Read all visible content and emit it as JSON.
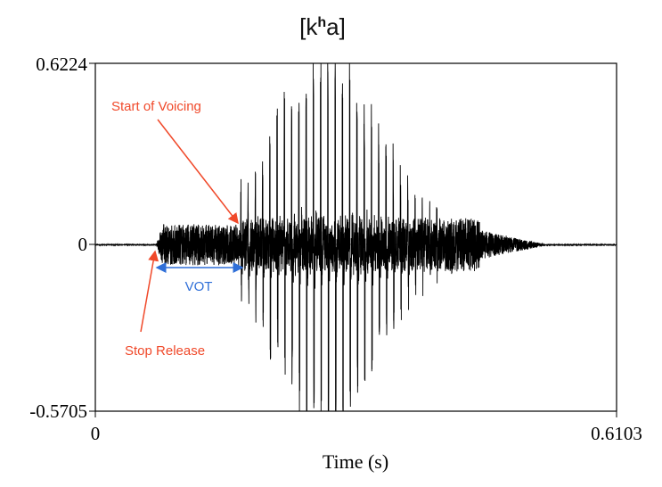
{
  "chart_data": {
    "type": "line",
    "title": "[kʰa]",
    "title_parts": {
      "base": "[k",
      "superscript": "h",
      "rest": "a]"
    },
    "xlabel": "Time (s)",
    "ylabel": "",
    "xlim": [
      0,
      0.6103
    ],
    "ylim": [
      -0.5705,
      0.6224
    ],
    "x_tick_labels": [
      "0",
      "0.6103"
    ],
    "y_tick_labels": [
      "0.6224",
      "0",
      "-0.5705"
    ],
    "grid": false,
    "series": [
      {
        "kind": "waveform",
        "color": "#000000"
      }
    ],
    "events": {
      "stop_release_s": 0.071,
      "voicing_onset_s": 0.17,
      "voicing_offset_s": 0.45,
      "silence_after_s": 0.52
    },
    "annotations": [
      {
        "id": "start-of-voicing",
        "text": "Start of Voicing",
        "color": "#f0492a",
        "points_to_s": 0.17
      },
      {
        "id": "stop-release",
        "text": "Stop Release",
        "color": "#f0492a",
        "points_to_s": 0.071
      },
      {
        "id": "vot",
        "text": "VOT",
        "color": "#2f6fd8",
        "from_s": 0.071,
        "to_s": 0.17
      }
    ]
  }
}
